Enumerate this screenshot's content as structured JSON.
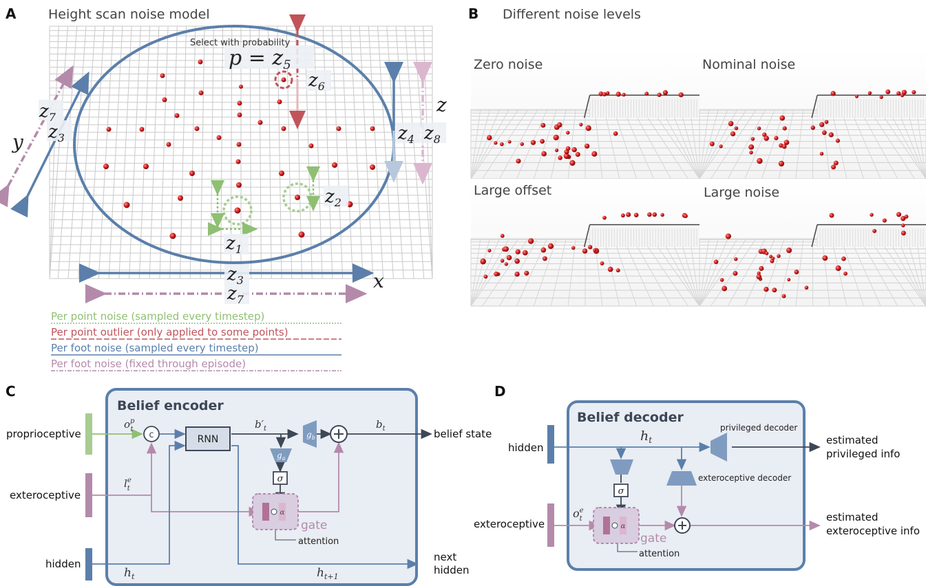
{
  "panel_a": {
    "letter": "A",
    "title": "Height scan noise model",
    "select_text": "Select with probability",
    "p_label": "p = z",
    "p_sub": "5",
    "z_labels": {
      "z1": "1",
      "z2": "2",
      "z3": "3",
      "z4": "4",
      "z5": "5",
      "z6": "6",
      "z7": "7",
      "z8": "8"
    },
    "z_base": "z",
    "axis_x": "x",
    "axis_y": "y",
    "axis_z": "z",
    "legend": [
      {
        "text": "Per point noise (sampled every timestep)",
        "color": "#8fbf73"
      },
      {
        "text": "Per point outlier (only applied to some points)",
        "color": "#c0545a"
      },
      {
        "text": "Per foot noise (sampled every timestep)",
        "color": "#5b7faa"
      },
      {
        "text": "Per foot noise (fixed through episode)",
        "color": "#b48aaa"
      }
    ]
  },
  "panel_b": {
    "letter": "B",
    "title": "Different noise levels",
    "tiles": [
      "Zero noise",
      "Nominal noise",
      "Large offset",
      "Large noise"
    ]
  },
  "panel_c": {
    "letter": "C",
    "box_title": "Belief encoder",
    "inputs": [
      "proprioceptive",
      "exteroceptive",
      "hidden"
    ],
    "rnn": "RNN",
    "concat": "c",
    "o_label": "o",
    "o_sup": "p",
    "o_sub": "t",
    "l_label": "l",
    "l_sup": "e",
    "l_sub": "t",
    "b_prime": "b′",
    "b_prime_sub": "t",
    "b_label": "b",
    "b_sub": "t",
    "gb": "g",
    "gb_sub": "b",
    "ga": "g",
    "ga_sub": "a",
    "sigma": "σ",
    "alpha": "α",
    "gate": "gate",
    "attention": "attention",
    "h_label": "h",
    "h_sub": "t",
    "h_next_sub": "t+1",
    "outputs": [
      "belief state",
      "next",
      "hidden"
    ]
  },
  "panel_d": {
    "letter": "D",
    "box_title": "Belief decoder",
    "inputs": [
      "hidden",
      "exteroceptive"
    ],
    "h_label": "h",
    "h_sub": "t",
    "o_label": "o",
    "o_sup": "e",
    "o_sub": "t",
    "priv_decoder": "privileged decoder",
    "extero_decoder": "exteroceptive decoder",
    "sigma": "σ",
    "alpha": "α",
    "gate": "gate",
    "attention": "attention",
    "outputs": [
      "estimated",
      "privileged info",
      "estimated",
      "exteroceptive info"
    ]
  },
  "colors": {
    "blue": "#5b7faa",
    "green": "#8fbf73",
    "red": "#c0545a",
    "pink": "#b48aaa",
    "box_fill": "#e9edf4",
    "box_stroke": "#5b7faa"
  }
}
